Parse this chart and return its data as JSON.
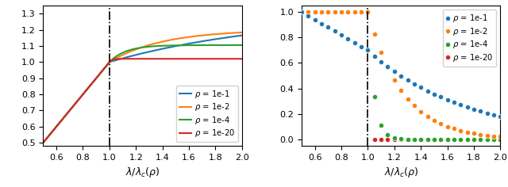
{
  "xlim": [
    0.5,
    2.0
  ],
  "left_ylim": [
    0.48,
    1.35
  ],
  "right_ylim": [
    -0.05,
    1.05
  ],
  "vline_x": 1.0,
  "xlabel": "$\\lambda/\\lambda_c(\\rho)$",
  "rho_labels": [
    "1e-1",
    "1e-2",
    "1e-4",
    "1e-20"
  ],
  "colors": [
    "#1f77b4",
    "#ff7f0e",
    "#2ca02c",
    "#d62728"
  ],
  "left_yticks": [
    0.5,
    0.6,
    0.7,
    0.8,
    0.9,
    1.0,
    1.1,
    1.2,
    1.3
  ],
  "right_yticks": [
    0.0,
    0.2,
    0.4,
    0.6,
    0.8,
    1.0
  ],
  "xticks": [
    0.6,
    0.8,
    1.0,
    1.2,
    1.4,
    1.6,
    1.8,
    2.0
  ],
  "n_dots": 31
}
